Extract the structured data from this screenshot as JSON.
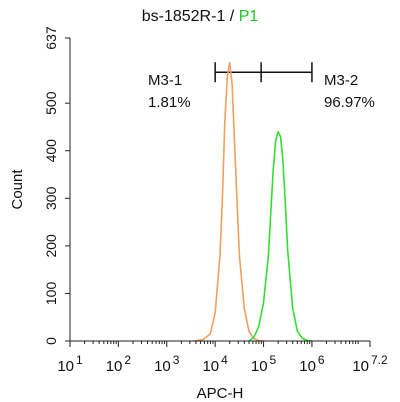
{
  "chart_data": {
    "type": "line",
    "title": {
      "sample": "bs-1852R-1",
      "separator": " / ",
      "gate": "P1",
      "gate_color": "#22c422"
    },
    "xlabel": "APC-H",
    "ylabel": "Count",
    "x_scale": "log",
    "xlim": [
      1,
      7.2
    ],
    "ylim": [
      0,
      637
    ],
    "x_ticks": [
      {
        "base": "10",
        "exp": "1"
      },
      {
        "base": "10",
        "exp": "2"
      },
      {
        "base": "10",
        "exp": "3"
      },
      {
        "base": "10",
        "exp": "4"
      },
      {
        "base": "10",
        "exp": "5"
      },
      {
        "base": "10",
        "exp": "6"
      },
      {
        "base": "10",
        "exp": "7.2"
      }
    ],
    "x_tick_values": [
      1,
      2,
      3,
      4,
      5,
      6,
      7.2
    ],
    "y_ticks": [
      "0",
      "100",
      "200",
      "300",
      "400",
      "500",
      "637"
    ],
    "y_tick_values": [
      0,
      100,
      200,
      300,
      400,
      500,
      637
    ],
    "series": [
      {
        "color": "#f0a060",
        "x": [
          3.55,
          3.75,
          3.9,
          4.0,
          4.1,
          4.15,
          4.2,
          4.25,
          4.3,
          4.35,
          4.4,
          4.45,
          4.5,
          4.6,
          4.7,
          4.8,
          4.9,
          5.0
        ],
        "y": [
          0,
          3,
          15,
          60,
          180,
          300,
          460,
          555,
          585,
          540,
          420,
          300,
          180,
          70,
          20,
          5,
          1,
          0
        ]
      },
      {
        "color": "#33dd33",
        "x": [
          4.7,
          4.8,
          4.9,
          5.0,
          5.1,
          5.15,
          5.2,
          5.25,
          5.3,
          5.35,
          5.4,
          5.45,
          5.5,
          5.6,
          5.7,
          5.8,
          5.9,
          6.0
        ],
        "y": [
          0,
          8,
          30,
          80,
          180,
          270,
          360,
          420,
          440,
          430,
          380,
          290,
          190,
          70,
          20,
          6,
          1,
          0
        ]
      }
    ],
    "markers": {
      "range_x": [
        4.0,
        6.0
      ],
      "divider_x": 4.95,
      "y": 565,
      "tick_half_height": 20
    },
    "annotations": [
      {
        "name": "M3-1",
        "value": "1.81%"
      },
      {
        "name": "M3-2",
        "value": "96.97%"
      }
    ]
  }
}
